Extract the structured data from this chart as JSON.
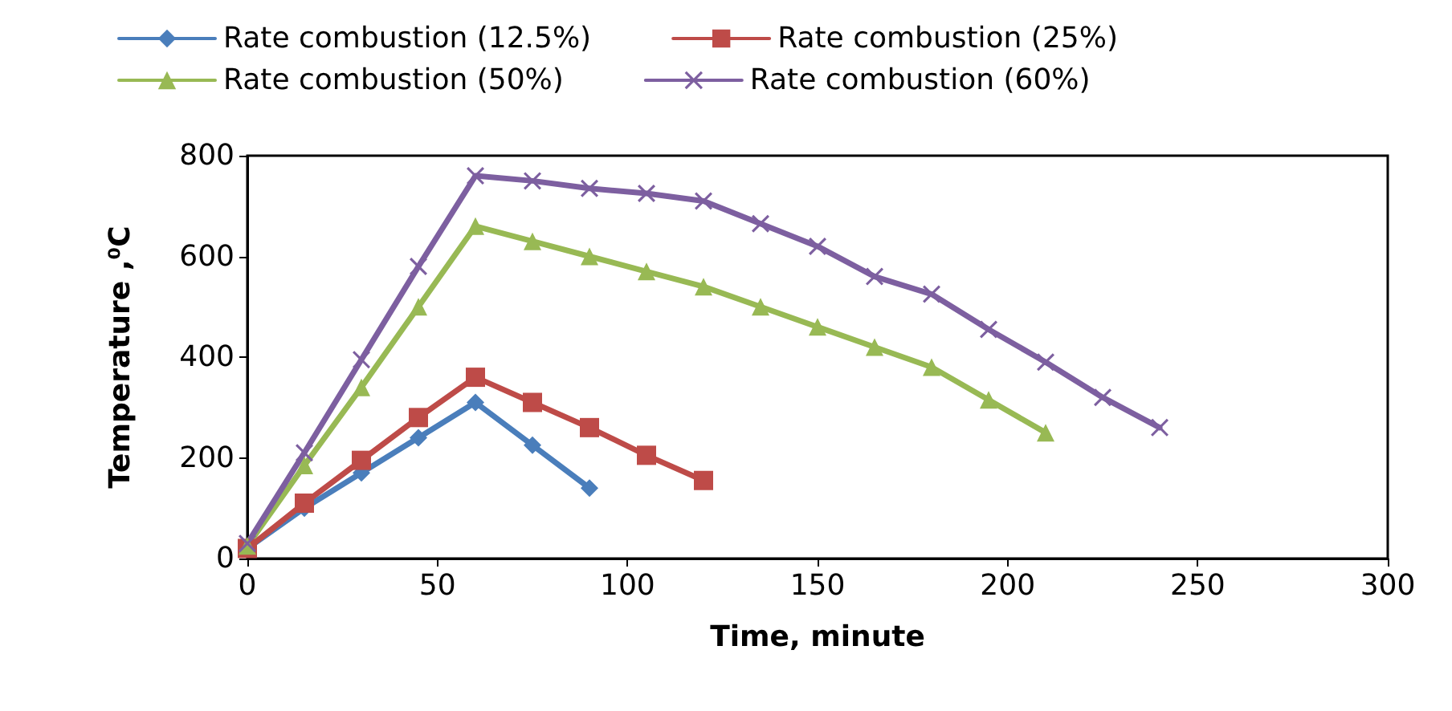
{
  "chart_data": {
    "type": "line",
    "xlabel": "Time, minute",
    "ylabel": "Temperature ,⁰C",
    "xlim": [
      0,
      300
    ],
    "xticks": [
      0,
      50,
      100,
      150,
      200,
      250,
      300
    ],
    "ylim": [
      0,
      800
    ],
    "yticks": [
      0,
      200,
      400,
      600,
      800
    ],
    "grid": false,
    "legend": "top",
    "line_style": "solid",
    "series": [
      {
        "name": "Rate combustion (12.5%)",
        "color": "#4a7ebb",
        "marker": "diamond",
        "x": [
          0,
          15,
          30,
          45,
          60,
          75,
          90
        ],
        "values": [
          20,
          100,
          170,
          240,
          310,
          225,
          140
        ]
      },
      {
        "name": "Rate combustion (25%)",
        "color": "#be4b48",
        "marker": "square",
        "x": [
          0,
          15,
          30,
          45,
          60,
          75,
          90,
          105,
          120
        ],
        "values": [
          20,
          110,
          195,
          280,
          360,
          310,
          260,
          205,
          155
        ]
      },
      {
        "name": "Rate combustion (50%)",
        "color": "#98b954",
        "marker": "triangle",
        "x": [
          0,
          15,
          30,
          45,
          60,
          75,
          90,
          105,
          120,
          135,
          150,
          165,
          180,
          195,
          210
        ],
        "values": [
          25,
          185,
          340,
          500,
          660,
          630,
          600,
          570,
          540,
          500,
          460,
          420,
          380,
          315,
          250
        ]
      },
      {
        "name": "Rate combustion (60%)",
        "color": "#7d5fa0",
        "marker": "cross",
        "x": [
          0,
          15,
          30,
          45,
          60,
          75,
          90,
          105,
          120,
          135,
          150,
          165,
          180,
          195,
          210,
          225,
          240
        ],
        "values": [
          30,
          210,
          395,
          580,
          760,
          750,
          735,
          725,
          710,
          665,
          620,
          560,
          525,
          455,
          390,
          320,
          260
        ]
      }
    ]
  }
}
